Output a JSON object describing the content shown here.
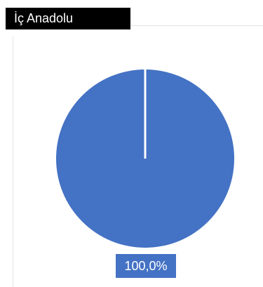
{
  "chart_data": {
    "type": "pie",
    "title": "İç Anadolu",
    "categories": [
      ""
    ],
    "values": [
      100
    ],
    "data_labels": [
      "100,0%"
    ],
    "colors": [
      "#4472c4"
    ],
    "legend": "none"
  }
}
